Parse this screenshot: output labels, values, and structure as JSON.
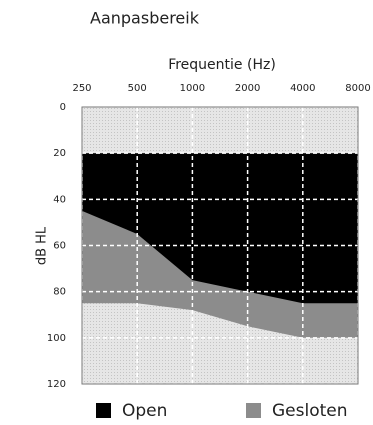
{
  "chart_data": {
    "type": "range-area",
    "title": "Aanpasbereik",
    "x_label": "Frequentie (Hz)",
    "y_label": "dB HL",
    "x": [
      250,
      500,
      1000,
      2000,
      4000,
      8000
    ],
    "xlim": [
      250,
      8000
    ],
    "xticks": [
      250,
      500,
      1000,
      2000,
      4000,
      8000
    ],
    "x_log": true,
    "ylim": [
      0,
      120
    ],
    "yticks": [
      0,
      20,
      40,
      60,
      80,
      100,
      120
    ],
    "y_inverted": true,
    "grid": true,
    "series": [
      {
        "name": "Gesloten",
        "color": "#8c8c8c",
        "top": [
          20,
          20,
          20,
          20,
          20,
          20
        ],
        "values": [
          85,
          85,
          88,
          95,
          100,
          100
        ]
      },
      {
        "name": "Open",
        "color": "#000000",
        "top": [
          20,
          20,
          20,
          20,
          20,
          20
        ],
        "values": [
          45,
          55,
          75,
          80,
          85,
          85
        ]
      }
    ],
    "legend_order": [
      1,
      0
    ]
  }
}
